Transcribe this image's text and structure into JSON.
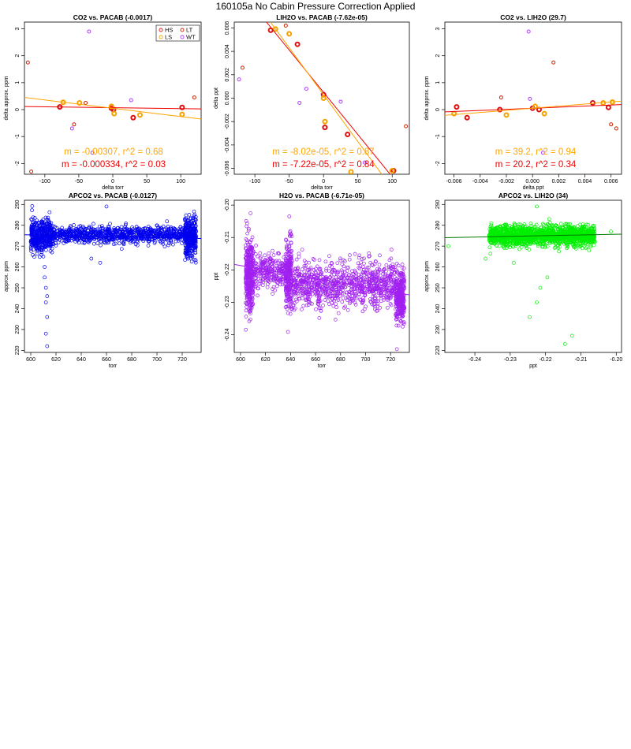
{
  "page_title": "160105a   No Cabin Pressure Correction Applied",
  "colors": {
    "HS": "#dd1111",
    "LS": "#f5a200",
    "LT": "#cc2200",
    "WT": "#b040ff",
    "apco2": "#0000ee",
    "h2o": "#a020f0",
    "lih2o": "#00ee00",
    "fit_red": "#ee0000",
    "fit_orange": "#ffa500",
    "fit_h2o": "#a020f0",
    "fit_green": "#007700"
  },
  "legend": {
    "items": [
      "HS",
      "LT",
      "LS",
      "WT"
    ]
  },
  "chart_data": [
    {
      "id": "p1",
      "type": "scatter",
      "title": "CO2 vs. PACAB (-0.0017)",
      "xlabel": "delta torr",
      "ylabel": "delta approx. ppm",
      "xlim": [
        -130,
        130
      ],
      "ylim": [
        -2.4,
        3.25
      ],
      "xticks": [
        -100,
        -50,
        0,
        50,
        100
      ],
      "yticks": [
        -2,
        -1,
        0,
        1,
        2,
        3
      ],
      "legend": true,
      "annotations": [
        {
          "text": "m = -0.00307, r^2 = 0.68",
          "color": "fit_orange"
        },
        {
          "text": "m = -0.000334, r^2 = 0.03",
          "color": "fit_red"
        }
      ],
      "fits": [
        {
          "color": "fit_red",
          "slope": -0.000334,
          "intercept": 0.07
        },
        {
          "color": "fit_orange",
          "slope": -0.00307,
          "intercept": 0.05
        }
      ],
      "series": [
        {
          "name": "HS",
          "points": [
            [
              -78,
              0.1
            ],
            [
              -2,
              0.05
            ],
            [
              1,
              0.0
            ],
            [
              30,
              -0.3
            ],
            [
              102,
              0.08
            ]
          ],
          "r": 2.5,
          "w": 2
        },
        {
          "name": "LS",
          "points": [
            [
              -73,
              0.27
            ],
            [
              -49,
              0.25
            ],
            [
              -2,
              0.12
            ],
            [
              2,
              -0.15
            ],
            [
              40,
              -0.2
            ],
            [
              102,
              -0.18
            ]
          ],
          "r": 2.5,
          "w": 2
        },
        {
          "name": "LT",
          "points": [
            [
              -125,
              1.75
            ],
            [
              -120,
              -2.3
            ],
            [
              -57,
              -0.55
            ],
            [
              -40,
              0.25
            ],
            [
              120,
              0.45
            ]
          ],
          "r": 2,
          "w": 1
        },
        {
          "name": "WT",
          "points": [
            [
              -35,
              2.9
            ],
            [
              -30,
              -1.6
            ],
            [
              27,
              0.35
            ],
            [
              -60,
              -0.7
            ]
          ],
          "r": 2,
          "w": 1
        }
      ]
    },
    {
      "id": "p2",
      "type": "scatter",
      "title": "LIH2O vs. PACAB (-7.62e-05)",
      "xlabel": "delta torr",
      "ylabel": "delta ppt",
      "xlim": [
        -130,
        125
      ],
      "ylim": [
        -0.0065,
        0.0065
      ],
      "xticks": [
        -100,
        -50,
        0,
        50,
        100
      ],
      "yticks": [
        -0.006,
        -0.004,
        -0.002,
        0.0,
        0.002,
        0.004,
        0.006
      ],
      "ytick_labels": [
        "-0.006",
        "-0.004",
        "-0.002",
        "0.000",
        "0.002",
        "0.004",
        "0.006"
      ],
      "legend": false,
      "annotations": [
        {
          "text": "m = -8.02e-05, r^2 = 0.87",
          "color": "fit_orange"
        },
        {
          "text": "m = -7.22e-05, r^2 = 0.84",
          "color": "fit_red"
        }
      ],
      "fits": [
        {
          "color": "fit_red",
          "slope": -7.22e-05,
          "intercept": 0.0005
        },
        {
          "color": "fit_orange",
          "slope": -8.02e-05,
          "intercept": 0.0003
        }
      ],
      "series": [
        {
          "name": "HS",
          "points": [
            [
              -77,
              0.0058
            ],
            [
              -38,
              0.0046
            ],
            [
              0,
              0.0003
            ],
            [
              2,
              -0.0025
            ],
            [
              35,
              -0.0031
            ],
            [
              102,
              -0.0062
            ]
          ],
          "r": 2.5,
          "w": 2
        },
        {
          "name": "LS",
          "points": [
            [
              -70,
              0.0059
            ],
            [
              -50,
              0.0055
            ],
            [
              0,
              0.0
            ],
            [
              2,
              -0.002
            ],
            [
              40,
              -0.0063
            ],
            [
              100,
              -0.0062
            ]
          ],
          "r": 2.5,
          "w": 2
        },
        {
          "name": "LT",
          "points": [
            [
              -118,
              0.0026
            ],
            [
              -55,
              0.0062
            ],
            [
              120,
              -0.0024
            ]
          ],
          "r": 2,
          "w": 1
        },
        {
          "name": "WT",
          "points": [
            [
              -123,
              0.0016
            ],
            [
              -35,
              -0.0004
            ],
            [
              -25,
              0.0008
            ],
            [
              25,
              -0.0003
            ],
            [
              60,
              -0.0055
            ]
          ],
          "r": 2,
          "w": 1
        }
      ]
    },
    {
      "id": "p3",
      "type": "scatter",
      "title": "CO2 vs. LIH2O (29.7)",
      "xlabel": "delta ppt",
      "ylabel": "delta approx. ppm",
      "xlim": [
        -0.0067,
        0.0068
      ],
      "ylim": [
        -2.4,
        3.25
      ],
      "xticks": [
        -0.006,
        -0.004,
        -0.002,
        0.0,
        0.002,
        0.004,
        0.006
      ],
      "xtick_labels": [
        "-0.006",
        "-0.004",
        "-0.002",
        "0.000",
        "0.002",
        "0.004",
        "0.006"
      ],
      "yticks": [
        -2,
        -1,
        0,
        1,
        2,
        3
      ],
      "legend": false,
      "annotations": [
        {
          "text": "m = 39.2, r^2 = 0.94",
          "color": "fit_orange"
        },
        {
          "text": "m = 20.2, r^2 = 0.34",
          "color": "fit_red"
        }
      ],
      "fits": [
        {
          "color": "fit_red",
          "slope": 20.2,
          "intercept": 0.05
        },
        {
          "color": "fit_orange",
          "slope": 39.2,
          "intercept": 0.05
        }
      ],
      "series": [
        {
          "name": "HS",
          "points": [
            [
              -0.0058,
              0.1
            ],
            [
              -0.005,
              -0.3
            ],
            [
              -0.0025,
              0.0
            ],
            [
              0.0,
              0.05
            ],
            [
              0.0005,
              0.0
            ],
            [
              0.0046,
              0.25
            ],
            [
              0.0058,
              0.08
            ]
          ],
          "r": 2.5,
          "w": 2
        },
        {
          "name": "LS",
          "points": [
            [
              -0.006,
              -0.15
            ],
            [
              -0.002,
              -0.2
            ],
            [
              0.0002,
              0.12
            ],
            [
              0.0009,
              -0.15
            ],
            [
              0.0054,
              0.25
            ],
            [
              0.0061,
              0.28
            ]
          ],
          "r": 2.5,
          "w": 2
        },
        {
          "name": "LT",
          "points": [
            [
              -0.0024,
              0.45
            ],
            [
              0.0016,
              1.75
            ],
            [
              0.006,
              -0.55
            ],
            [
              0.0064,
              -0.7
            ]
          ],
          "r": 2,
          "w": 1
        },
        {
          "name": "WT",
          "points": [
            [
              -0.0003,
              2.9
            ],
            [
              -0.0002,
              0.4
            ],
            [
              0.0008,
              -1.6
            ]
          ],
          "r": 2,
          "w": 1
        }
      ]
    },
    {
      "id": "p4",
      "type": "scatter",
      "title": "APCO2 vs. PACAB (-0.0127)",
      "xlabel": "torr",
      "ylabel": "approx. ppm",
      "xlim": [
        595,
        735
      ],
      "ylim": [
        219,
        292
      ],
      "xticks": [
        600,
        620,
        640,
        660,
        680,
        700,
        720
      ],
      "yticks": [
        220,
        230,
        240,
        250,
        260,
        270,
        280,
        290
      ],
      "color": "apco2",
      "fits": [
        {
          "color": "apco2",
          "slope": -0.0127,
          "intercept": 283.0
        }
      ],
      "clusters": [
        {
          "x": [
            600,
            617
          ],
          "ymean": 275,
          "yspread": 8,
          "n": 420,
          "seed": 11
        },
        {
          "x": [
            617,
            724
          ],
          "ymean": 275.5,
          "yspread": 4,
          "n": 900,
          "seed": 12
        },
        {
          "x": [
            722,
            731
          ],
          "ymean": 274,
          "yspread": 10,
          "n": 320,
          "seed": 13
        }
      ],
      "extra_points": [
        [
          611,
          255
        ],
        [
          611,
          260
        ],
        [
          612,
          250
        ],
        [
          612,
          243
        ],
        [
          613,
          236
        ],
        [
          612,
          228
        ],
        [
          613,
          222
        ],
        [
          660,
          289
        ],
        [
          655,
          262
        ],
        [
          648,
          264
        ],
        [
          613,
          246
        ],
        [
          610,
          265
        ],
        [
          608,
          268
        ]
      ]
    },
    {
      "id": "p5",
      "type": "scatter",
      "title": "H2O vs. PACAB (-6.71e-05)",
      "xlabel": "torr",
      "ylabel": "ppt",
      "xlim": [
        595,
        735
      ],
      "ylim": [
        -0.2455,
        -0.1985
      ],
      "xticks": [
        600,
        620,
        640,
        660,
        680,
        700,
        720
      ],
      "yticks": [
        -0.24,
        -0.23,
        -0.22,
        -0.21,
        -0.2
      ],
      "ytick_labels": [
        "-0.24",
        "-0.23",
        "-0.22",
        "-0.21",
        "-0.20"
      ],
      "color": "h2o",
      "fits": [
        {
          "color": "fit_h2o",
          "slope": -6.71e-05,
          "intercept": -0.1784
        }
      ],
      "clusters": [
        {
          "x": [
            604,
            610
          ],
          "ymean": -0.2215,
          "yspread": 0.011,
          "n": 380,
          "seed": 21
        },
        {
          "x": [
            610,
            636
          ],
          "ymean": -0.2205,
          "yspread": 0.005,
          "n": 260,
          "seed": 22
        },
        {
          "x": [
            636,
            641
          ],
          "ymean": -0.221,
          "yspread": 0.01,
          "n": 260,
          "seed": 23
        },
        {
          "x": [
            641,
            724
          ],
          "ymean": -0.2245,
          "yspread": 0.007,
          "n": 900,
          "seed": 24
        },
        {
          "x": [
            724,
            731
          ],
          "ymean": -0.2285,
          "yspread": 0.0075,
          "n": 320,
          "seed": 25
        }
      ],
      "extra_points": [
        [
          725,
          -0.2445
        ],
        [
          608,
          -0.2025
        ],
        [
          639,
          -0.2035
        ]
      ]
    },
    {
      "id": "p6",
      "type": "scatter",
      "title": "APCO2 vs. LIH2O (34)",
      "xlabel": "ppt",
      "ylabel": "approx. ppm",
      "xlim": [
        -0.2485,
        -0.1985
      ],
      "ylim": [
        219,
        292
      ],
      "xticks": [
        -0.24,
        -0.23,
        -0.22,
        -0.21,
        -0.2
      ],
      "xtick_labels": [
        "-0.24",
        "-0.23",
        "-0.22",
        "-0.21",
        "-0.20"
      ],
      "yticks": [
        220,
        230,
        240,
        250,
        260,
        270,
        280,
        290
      ],
      "color": "lih2o",
      "fits": [
        {
          "color": "fit_green",
          "slope": 34,
          "intercept": 282.5
        }
      ],
      "clusters": [
        {
          "x": [
            -0.236,
            -0.206
          ],
          "ymean": 275,
          "yspread": 5,
          "n": 1500,
          "seed": 31
        }
      ],
      "extra_points": [
        [
          -0.2225,
          289
        ],
        [
          -0.2245,
          236
        ],
        [
          -0.2225,
          243
        ],
        [
          -0.2195,
          255
        ],
        [
          -0.2125,
          227
        ],
        [
          -0.2145,
          223
        ],
        [
          -0.2475,
          270
        ],
        [
          -0.2015,
          277
        ],
        [
          -0.237,
          264
        ],
        [
          -0.229,
          262
        ],
        [
          -0.2215,
          250
        ]
      ]
    }
  ]
}
